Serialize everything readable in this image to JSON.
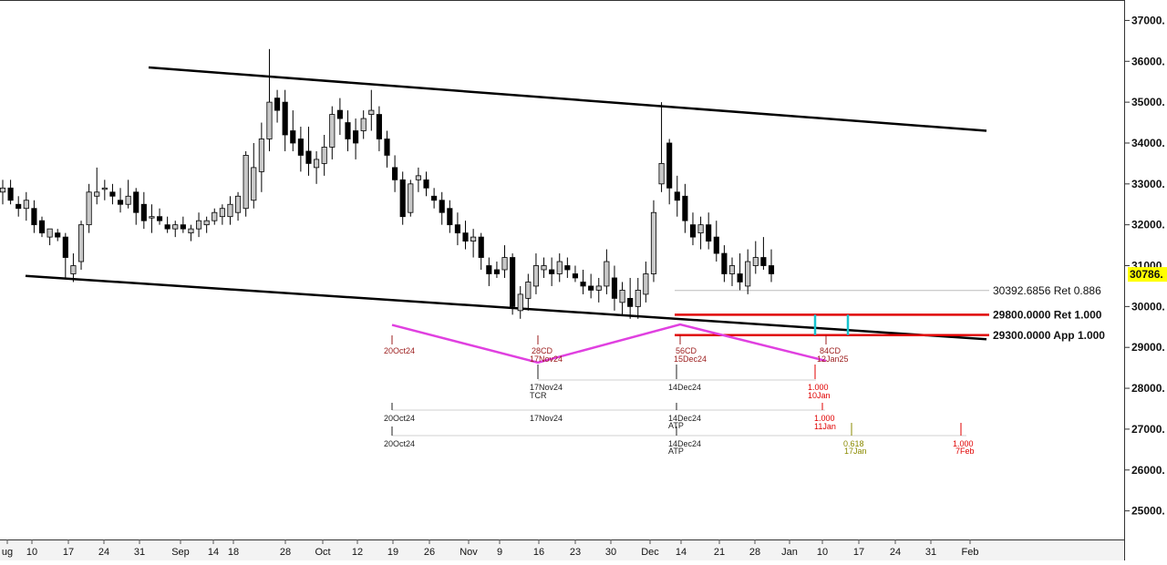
{
  "chart_data": {
    "type": "candlestick",
    "y_axis": {
      "ticks": [
        "37000.",
        "36000.",
        "35000.",
        "34000.",
        "33000.",
        "32000.",
        "31000.",
        "30000.",
        "29000.",
        "28000.",
        "27000.",
        "26000.",
        "25000."
      ],
      "tick_values": [
        37000,
        36000,
        35000,
        34000,
        33000,
        32000,
        31000,
        30000,
        29000,
        28000,
        27000,
        26000,
        25000
      ],
      "range": [
        24300,
        37500
      ],
      "last_price_label": "30786.",
      "last_price": 30786
    },
    "x_axis": {
      "ticks": [
        "ug",
        "10",
        "17",
        "24",
        "31",
        "Sep",
        "14",
        "18",
        "28",
        "Oct",
        "12",
        "19",
        "26",
        "Nov",
        "9",
        "16",
        "23",
        "30",
        "Dec",
        "14",
        "21",
        "28",
        "Jan",
        "10",
        "17",
        "24",
        "31",
        "Feb"
      ]
    },
    "candles": [
      {
        "o": 32800,
        "h": 33100,
        "l": 32500,
        "c": 32900
      },
      {
        "o": 32900,
        "h": 33100,
        "l": 32500,
        "c": 32600
      },
      {
        "o": 32500,
        "h": 32700,
        "l": 32200,
        "c": 32400
      },
      {
        "o": 32400,
        "h": 32800,
        "l": 32100,
        "c": 32600
      },
      {
        "o": 32400,
        "h": 32600,
        "l": 31800,
        "c": 32000
      },
      {
        "o": 32100,
        "h": 32200,
        "l": 31700,
        "c": 31800
      },
      {
        "o": 31700,
        "h": 31900,
        "l": 31500,
        "c": 31900
      },
      {
        "o": 31800,
        "h": 31900,
        "l": 31600,
        "c": 31700
      },
      {
        "o": 31700,
        "h": 31800,
        "l": 30700,
        "c": 31200
      },
      {
        "o": 30800,
        "h": 31300,
        "l": 30600,
        "c": 31000
      },
      {
        "o": 31100,
        "h": 32100,
        "l": 30900,
        "c": 32000
      },
      {
        "o": 32000,
        "h": 33000,
        "l": 31800,
        "c": 32800
      },
      {
        "o": 32700,
        "h": 33400,
        "l": 32500,
        "c": 32800
      },
      {
        "o": 32900,
        "h": 33100,
        "l": 32600,
        "c": 32900
      },
      {
        "o": 32800,
        "h": 33000,
        "l": 32500,
        "c": 32700
      },
      {
        "o": 32600,
        "h": 32900,
        "l": 32300,
        "c": 32500
      },
      {
        "o": 32500,
        "h": 33100,
        "l": 32400,
        "c": 32700
      },
      {
        "o": 32800,
        "h": 32900,
        "l": 32000,
        "c": 32300
      },
      {
        "o": 32500,
        "h": 32800,
        "l": 31900,
        "c": 32100
      },
      {
        "o": 32200,
        "h": 32500,
        "l": 31800,
        "c": 32200
      },
      {
        "o": 32200,
        "h": 32400,
        "l": 32000,
        "c": 32100
      },
      {
        "o": 32000,
        "h": 32200,
        "l": 31800,
        "c": 31900
      },
      {
        "o": 31900,
        "h": 32100,
        "l": 31700,
        "c": 32000
      },
      {
        "o": 32000,
        "h": 32200,
        "l": 31800,
        "c": 31900
      },
      {
        "o": 31800,
        "h": 32000,
        "l": 31600,
        "c": 31900
      },
      {
        "o": 31900,
        "h": 32300,
        "l": 31700,
        "c": 32100
      },
      {
        "o": 32000,
        "h": 32200,
        "l": 31800,
        "c": 32100
      },
      {
        "o": 32100,
        "h": 32400,
        "l": 32000,
        "c": 32300
      },
      {
        "o": 32200,
        "h": 32500,
        "l": 32000,
        "c": 32400
      },
      {
        "o": 32200,
        "h": 32700,
        "l": 32000,
        "c": 32500
      },
      {
        "o": 32300,
        "h": 32800,
        "l": 32100,
        "c": 32700
      },
      {
        "o": 32400,
        "h": 33800,
        "l": 32200,
        "c": 33700
      },
      {
        "o": 32600,
        "h": 34000,
        "l": 32400,
        "c": 33400
      },
      {
        "o": 33300,
        "h": 34500,
        "l": 32800,
        "c": 34100
      },
      {
        "o": 34100,
        "h": 36300,
        "l": 33800,
        "c": 35000
      },
      {
        "o": 35100,
        "h": 35300,
        "l": 34500,
        "c": 34800
      },
      {
        "o": 35000,
        "h": 35300,
        "l": 33800,
        "c": 34200
      },
      {
        "o": 34300,
        "h": 34800,
        "l": 33800,
        "c": 34000
      },
      {
        "o": 34100,
        "h": 34400,
        "l": 33300,
        "c": 33700
      },
      {
        "o": 33800,
        "h": 34400,
        "l": 33200,
        "c": 33500
      },
      {
        "o": 33400,
        "h": 33800,
        "l": 33000,
        "c": 33600
      },
      {
        "o": 33500,
        "h": 34200,
        "l": 33200,
        "c": 33900
      },
      {
        "o": 33900,
        "h": 34900,
        "l": 33600,
        "c": 34700
      },
      {
        "o": 34800,
        "h": 35100,
        "l": 34200,
        "c": 34600
      },
      {
        "o": 34500,
        "h": 34800,
        "l": 33800,
        "c": 34100
      },
      {
        "o": 34300,
        "h": 34600,
        "l": 33600,
        "c": 34000
      },
      {
        "o": 34300,
        "h": 34800,
        "l": 34100,
        "c": 34600
      },
      {
        "o": 34700,
        "h": 35300,
        "l": 34300,
        "c": 34800
      },
      {
        "o": 34700,
        "h": 34900,
        "l": 33800,
        "c": 34100
      },
      {
        "o": 34100,
        "h": 34300,
        "l": 33400,
        "c": 33700
      },
      {
        "o": 33400,
        "h": 33700,
        "l": 32800,
        "c": 33100
      },
      {
        "o": 33100,
        "h": 33300,
        "l": 32000,
        "c": 32200
      },
      {
        "o": 32300,
        "h": 33100,
        "l": 32200,
        "c": 33000
      },
      {
        "o": 33100,
        "h": 33400,
        "l": 32800,
        "c": 33200
      },
      {
        "o": 33100,
        "h": 33300,
        "l": 32700,
        "c": 32900
      },
      {
        "o": 32700,
        "h": 32900,
        "l": 32400,
        "c": 32600
      },
      {
        "o": 32600,
        "h": 32800,
        "l": 32000,
        "c": 32300
      },
      {
        "o": 32400,
        "h": 32600,
        "l": 31800,
        "c": 32000
      },
      {
        "o": 32000,
        "h": 32300,
        "l": 31500,
        "c": 31800
      },
      {
        "o": 31800,
        "h": 32100,
        "l": 31400,
        "c": 31600
      },
      {
        "o": 31600,
        "h": 31900,
        "l": 31200,
        "c": 31700
      },
      {
        "o": 31700,
        "h": 31800,
        "l": 30900,
        "c": 31200
      },
      {
        "o": 31000,
        "h": 31200,
        "l": 30500,
        "c": 30800
      },
      {
        "o": 30900,
        "h": 31100,
        "l": 30700,
        "c": 30800
      },
      {
        "o": 30900,
        "h": 31500,
        "l": 30700,
        "c": 31200
      },
      {
        "o": 31200,
        "h": 31300,
        "l": 29800,
        "c": 30000
      },
      {
        "o": 29900,
        "h": 30500,
        "l": 29700,
        "c": 30300
      },
      {
        "o": 30200,
        "h": 30800,
        "l": 29900,
        "c": 30600
      },
      {
        "o": 30500,
        "h": 31300,
        "l": 30300,
        "c": 31000
      },
      {
        "o": 30900,
        "h": 31200,
        "l": 30700,
        "c": 31000
      },
      {
        "o": 30900,
        "h": 31200,
        "l": 30500,
        "c": 30800
      },
      {
        "o": 30800,
        "h": 31300,
        "l": 30600,
        "c": 31100
      },
      {
        "o": 31000,
        "h": 31200,
        "l": 30700,
        "c": 30900
      },
      {
        "o": 30800,
        "h": 31000,
        "l": 30600,
        "c": 30700
      },
      {
        "o": 30600,
        "h": 30900,
        "l": 30300,
        "c": 30500
      },
      {
        "o": 30500,
        "h": 30800,
        "l": 30200,
        "c": 30400
      },
      {
        "o": 30400,
        "h": 30700,
        "l": 30100,
        "c": 30500
      },
      {
        "o": 30500,
        "h": 31400,
        "l": 30300,
        "c": 31100
      },
      {
        "o": 30700,
        "h": 31000,
        "l": 29900,
        "c": 30200
      },
      {
        "o": 30100,
        "h": 30600,
        "l": 29800,
        "c": 30400
      },
      {
        "o": 30200,
        "h": 30700,
        "l": 29700,
        "c": 30000
      },
      {
        "o": 30000,
        "h": 30700,
        "l": 29700,
        "c": 30400
      },
      {
        "o": 30300,
        "h": 31100,
        "l": 30100,
        "c": 30800
      },
      {
        "o": 30800,
        "h": 32600,
        "l": 30600,
        "c": 32300
      },
      {
        "o": 33000,
        "h": 35000,
        "l": 32800,
        "c": 33500
      },
      {
        "o": 34000,
        "h": 34100,
        "l": 32500,
        "c": 32900
      },
      {
        "o": 32800,
        "h": 33200,
        "l": 32200,
        "c": 32600
      },
      {
        "o": 32700,
        "h": 33000,
        "l": 31800,
        "c": 32100
      },
      {
        "o": 32000,
        "h": 32300,
        "l": 31500,
        "c": 31700
      },
      {
        "o": 31800,
        "h": 32200,
        "l": 31400,
        "c": 32000
      },
      {
        "o": 32000,
        "h": 32300,
        "l": 31400,
        "c": 31600
      },
      {
        "o": 31700,
        "h": 32100,
        "l": 31100,
        "c": 31300
      },
      {
        "o": 31300,
        "h": 31500,
        "l": 30600,
        "c": 30800
      },
      {
        "o": 30800,
        "h": 31200,
        "l": 30500,
        "c": 31000
      },
      {
        "o": 30800,
        "h": 31300,
        "l": 30400,
        "c": 30600
      },
      {
        "o": 30500,
        "h": 31400,
        "l": 30300,
        "c": 31100
      },
      {
        "o": 31000,
        "h": 31600,
        "l": 30800,
        "c": 31200
      },
      {
        "o": 31200,
        "h": 31700,
        "l": 30900,
        "c": 31000
      },
      {
        "o": 31000,
        "h": 31400,
        "l": 30600,
        "c": 30800
      }
    ],
    "trendlines": [
      {
        "name": "upper-channel",
        "from": [
          0.0,
          35850
        ],
        "to": [
          1.0,
          34300
        ],
        "color": "#000000"
      },
      {
        "name": "lower-channel",
        "from": [
          -0.017,
          30750
        ],
        "to": [
          1.0,
          29200
        ],
        "color": "#000000"
      }
    ],
    "levels": [
      {
        "label": "30392.6856 Ret 0.886",
        "value": 30392,
        "color": "#bbbbbb"
      },
      {
        "label": "29800.0000 Ret 1.000",
        "value": 29800,
        "color": "#e00000"
      },
      {
        "label": "29300.0000 App 1.000",
        "value": 29300,
        "color": "#e00000"
      }
    ],
    "pattern": {
      "color": "#e040e0",
      "points": [
        {
          "label": "20Oct24",
          "value": 29550
        },
        {
          "label": "28CD\n17Nov24",
          "value": 28630
        },
        {
          "label": "56CD\n15Dec24",
          "value": 29560
        },
        {
          "label": "84CD\n12Jan25",
          "value": 28670
        }
      ]
    },
    "annotations": [
      {
        "text": "20Oct24",
        "color": "#9b1c1c"
      },
      {
        "text": "28CD",
        "color": "#9b1c1c"
      },
      {
        "text": "17Nov24",
        "color": "#9b1c1c"
      },
      {
        "text": "56CD",
        "color": "#9b1c1c"
      },
      {
        "text": "15Dec24",
        "color": "#9b1c1c"
      },
      {
        "text": "84CD",
        "color": "#9b1c1c"
      },
      {
        "text": "12Jan25",
        "color": "#9b1c1c"
      },
      {
        "text": "17Nov24",
        "color": "#222222"
      },
      {
        "text": "TCR",
        "color": "#222222"
      },
      {
        "text": "14Dec24",
        "color": "#222222"
      },
      {
        "text": "1.000",
        "color": "#e00000"
      },
      {
        "text": "10Jan",
        "color": "#e00000"
      },
      {
        "text": "20Oct24",
        "color": "#222222"
      },
      {
        "text": "17Nov24",
        "color": "#222222"
      },
      {
        "text": "14Dec24",
        "color": "#222222"
      },
      {
        "text": "ATP",
        "color": "#222222"
      },
      {
        "text": "1.000",
        "color": "#e00000"
      },
      {
        "text": "11Jan",
        "color": "#e00000"
      },
      {
        "text": "20Oct24",
        "color": "#222222"
      },
      {
        "text": "14Dec24",
        "color": "#222222"
      },
      {
        "text": "ATP",
        "color": "#222222"
      },
      {
        "text": "0.618",
        "color": "#8a8a00"
      },
      {
        "text": "17Jan",
        "color": "#8a8a00"
      },
      {
        "text": "1.000",
        "color": "#e00000"
      },
      {
        "text": "7Feb",
        "color": "#e00000"
      }
    ],
    "grid": false,
    "legend": "none"
  }
}
